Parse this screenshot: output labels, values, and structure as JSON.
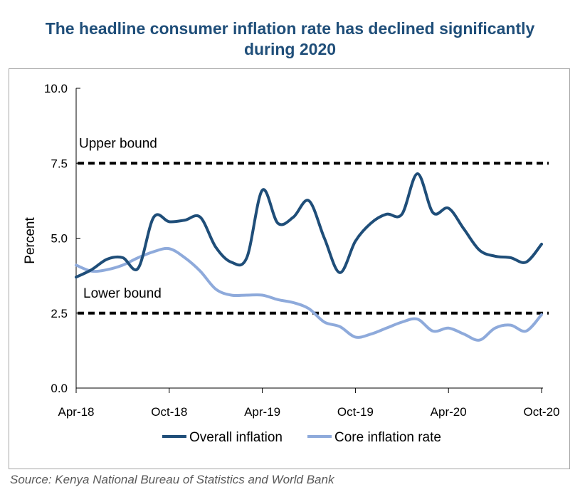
{
  "chart_data": {
    "type": "line",
    "title_lines": [
      "The headline consumer inflation rate has declined significantly",
      "during 2020"
    ],
    "xlabel": "",
    "ylabel": "Percent",
    "ylim": [
      0,
      10
    ],
    "yticks": [
      "0.0",
      "2.5",
      "5.0",
      "7.5",
      "10.0"
    ],
    "ytick_values": [
      0,
      2.5,
      5,
      7.5,
      10
    ],
    "xticks": [
      "Apr-18",
      "Oct-18",
      "Apr-19",
      "Oct-19",
      "Apr-20",
      "Oct-20"
    ],
    "xtick_indices": [
      0,
      6,
      12,
      18,
      24,
      30
    ],
    "x": [
      "Apr-18",
      "May-18",
      "Jun-18",
      "Jul-18",
      "Aug-18",
      "Sep-18",
      "Oct-18",
      "Nov-18",
      "Dec-18",
      "Jan-19",
      "Feb-19",
      "Mar-19",
      "Apr-19",
      "May-19",
      "Jun-19",
      "Jul-19",
      "Aug-19",
      "Sep-19",
      "Oct-19",
      "Nov-19",
      "Dec-19",
      "Jan-20",
      "Feb-20",
      "Mar-20",
      "Apr-20",
      "May-20",
      "Jun-20",
      "Jul-20",
      "Aug-20",
      "Sep-20",
      "Oct-20"
    ],
    "series": [
      {
        "name": "Overall inflation",
        "color": "#1f4e79",
        "values": [
          3.7,
          3.95,
          4.3,
          4.35,
          4.0,
          5.7,
          5.55,
          5.6,
          5.7,
          4.7,
          4.2,
          4.35,
          6.6,
          5.5,
          5.7,
          6.25,
          5.0,
          3.85,
          4.9,
          5.5,
          5.8,
          5.8,
          7.15,
          5.85,
          6.0,
          5.3,
          4.6,
          4.4,
          4.35,
          4.2,
          4.8
        ]
      },
      {
        "name": "Core inflation rate",
        "color": "#8eaadb",
        "values": [
          4.1,
          3.9,
          3.95,
          4.1,
          4.35,
          4.55,
          4.65,
          4.35,
          3.9,
          3.3,
          3.1,
          3.1,
          3.1,
          2.95,
          2.85,
          2.65,
          2.2,
          2.05,
          1.7,
          1.8,
          2.0,
          2.2,
          2.3,
          1.9,
          2.0,
          1.8,
          1.6,
          2.0,
          2.1,
          1.9,
          2.45
        ]
      }
    ],
    "reference_lines": [
      {
        "label": "Upper bound",
        "value": 7.5,
        "style": "dashed",
        "color": "#000000"
      },
      {
        "label": "Lower bound",
        "value": 2.5,
        "style": "dashed",
        "color": "#000000"
      }
    ],
    "legend_position": "bottom-center",
    "grid": false
  },
  "source": "Source: Kenya National Bureau of Statistics and World Bank"
}
